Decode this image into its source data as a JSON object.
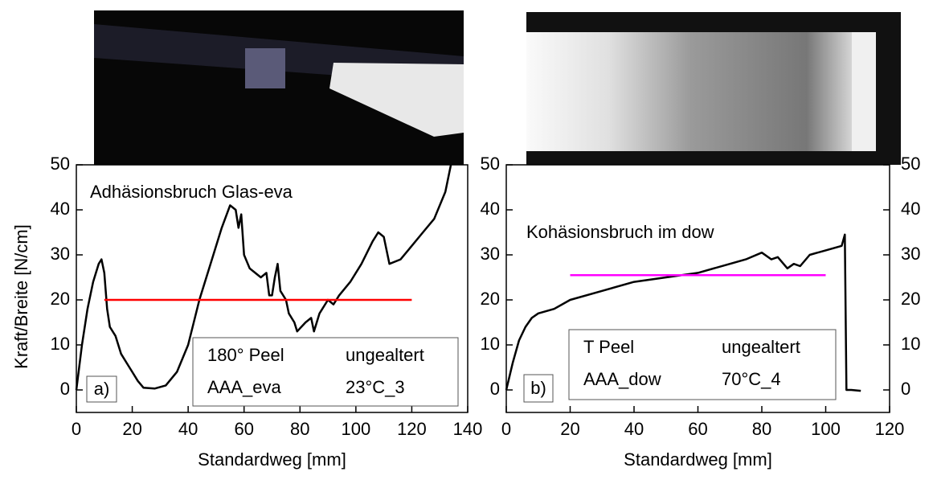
{
  "chart_data": [
    {
      "type": "line",
      "panel_label": "a)",
      "xlabel": "Standardweg [mm]",
      "ylabel": "Kraft/Breite [N/cm]",
      "annotation": {
        "text": "Adhäsionsbruch Glas-eva",
        "color": "#ff0000"
      },
      "info": [
        [
          "180° Peel",
          "ungealtert"
        ],
        [
          "AAA_eva",
          "23°C_3"
        ]
      ],
      "xlim": [
        0,
        140
      ],
      "ylim": [
        -5,
        50
      ],
      "xticks": [
        0,
        20,
        40,
        60,
        80,
        100,
        120,
        140
      ],
      "yticks": [
        0,
        10,
        20,
        30,
        40,
        50
      ],
      "series": [
        {
          "color": "#000000",
          "x": [
            0,
            2,
            4,
            6,
            8,
            9,
            10,
            11,
            12,
            14,
            16,
            18,
            20,
            22,
            24,
            28,
            32,
            36,
            40,
            44,
            48,
            52,
            55,
            57,
            58,
            59,
            60,
            62,
            64,
            66,
            68,
            69,
            70,
            71,
            72,
            73,
            75,
            76,
            78,
            79,
            82,
            84,
            85,
            87,
            90,
            92,
            94,
            98,
            102,
            106,
            108,
            110,
            112,
            116,
            120,
            124,
            128,
            132,
            134
          ],
          "values": [
            0,
            10,
            18,
            24,
            28,
            29,
            26,
            18,
            14,
            12,
            8,
            6,
            4,
            2,
            0.5,
            0.3,
            1,
            4,
            10,
            20,
            28,
            36,
            41,
            40,
            36,
            39,
            30,
            27,
            26,
            25,
            26,
            21,
            21,
            25,
            28,
            22,
            20,
            17,
            15,
            13,
            15,
            16,
            13,
            17,
            20,
            19,
            21,
            24,
            28,
            33,
            35,
            34,
            28,
            29,
            32,
            35,
            38,
            44,
            50
          ]
        },
        {
          "color": "#ff0000",
          "x": [
            10,
            120
          ],
          "values": [
            20,
            20
          ]
        }
      ]
    },
    {
      "type": "line",
      "panel_label": "b)",
      "xlabel": "Standardweg [mm]",
      "annotation": {
        "text": "Kohäsionsbruch im dow",
        "color": "#ff00ff"
      },
      "info": [
        [
          "T Peel",
          "ungealtert"
        ],
        [
          "AAA_dow",
          "70°C_4"
        ]
      ],
      "xlim": [
        0,
        120
      ],
      "ylim": [
        -5,
        50
      ],
      "xticks": [
        0,
        20,
        40,
        60,
        80,
        100,
        120
      ],
      "yticks": [
        0,
        10,
        20,
        30,
        40,
        50
      ],
      "y2lim": [
        -5,
        50
      ],
      "y2ticks": [
        0,
        10,
        20,
        30,
        40,
        50
      ],
      "series": [
        {
          "color": "#000000",
          "x": [
            0,
            2,
            4,
            6,
            8,
            10,
            15,
            20,
            30,
            40,
            50,
            60,
            70,
            75,
            80,
            83,
            85,
            88,
            90,
            92,
            95,
            100,
            105,
            106,
            106.5,
            108,
            111
          ],
          "values": [
            0,
            6,
            11,
            14,
            16,
            17,
            18,
            20,
            22,
            24,
            25,
            26,
            28,
            29,
            30.5,
            29,
            29.5,
            27,
            28,
            27.5,
            30,
            31,
            32,
            34.5,
            0,
            0,
            -0.2
          ]
        },
        {
          "color": "#ff00ff",
          "x": [
            20,
            100
          ],
          "values": [
            25.5,
            25.5
          ]
        }
      ]
    }
  ]
}
